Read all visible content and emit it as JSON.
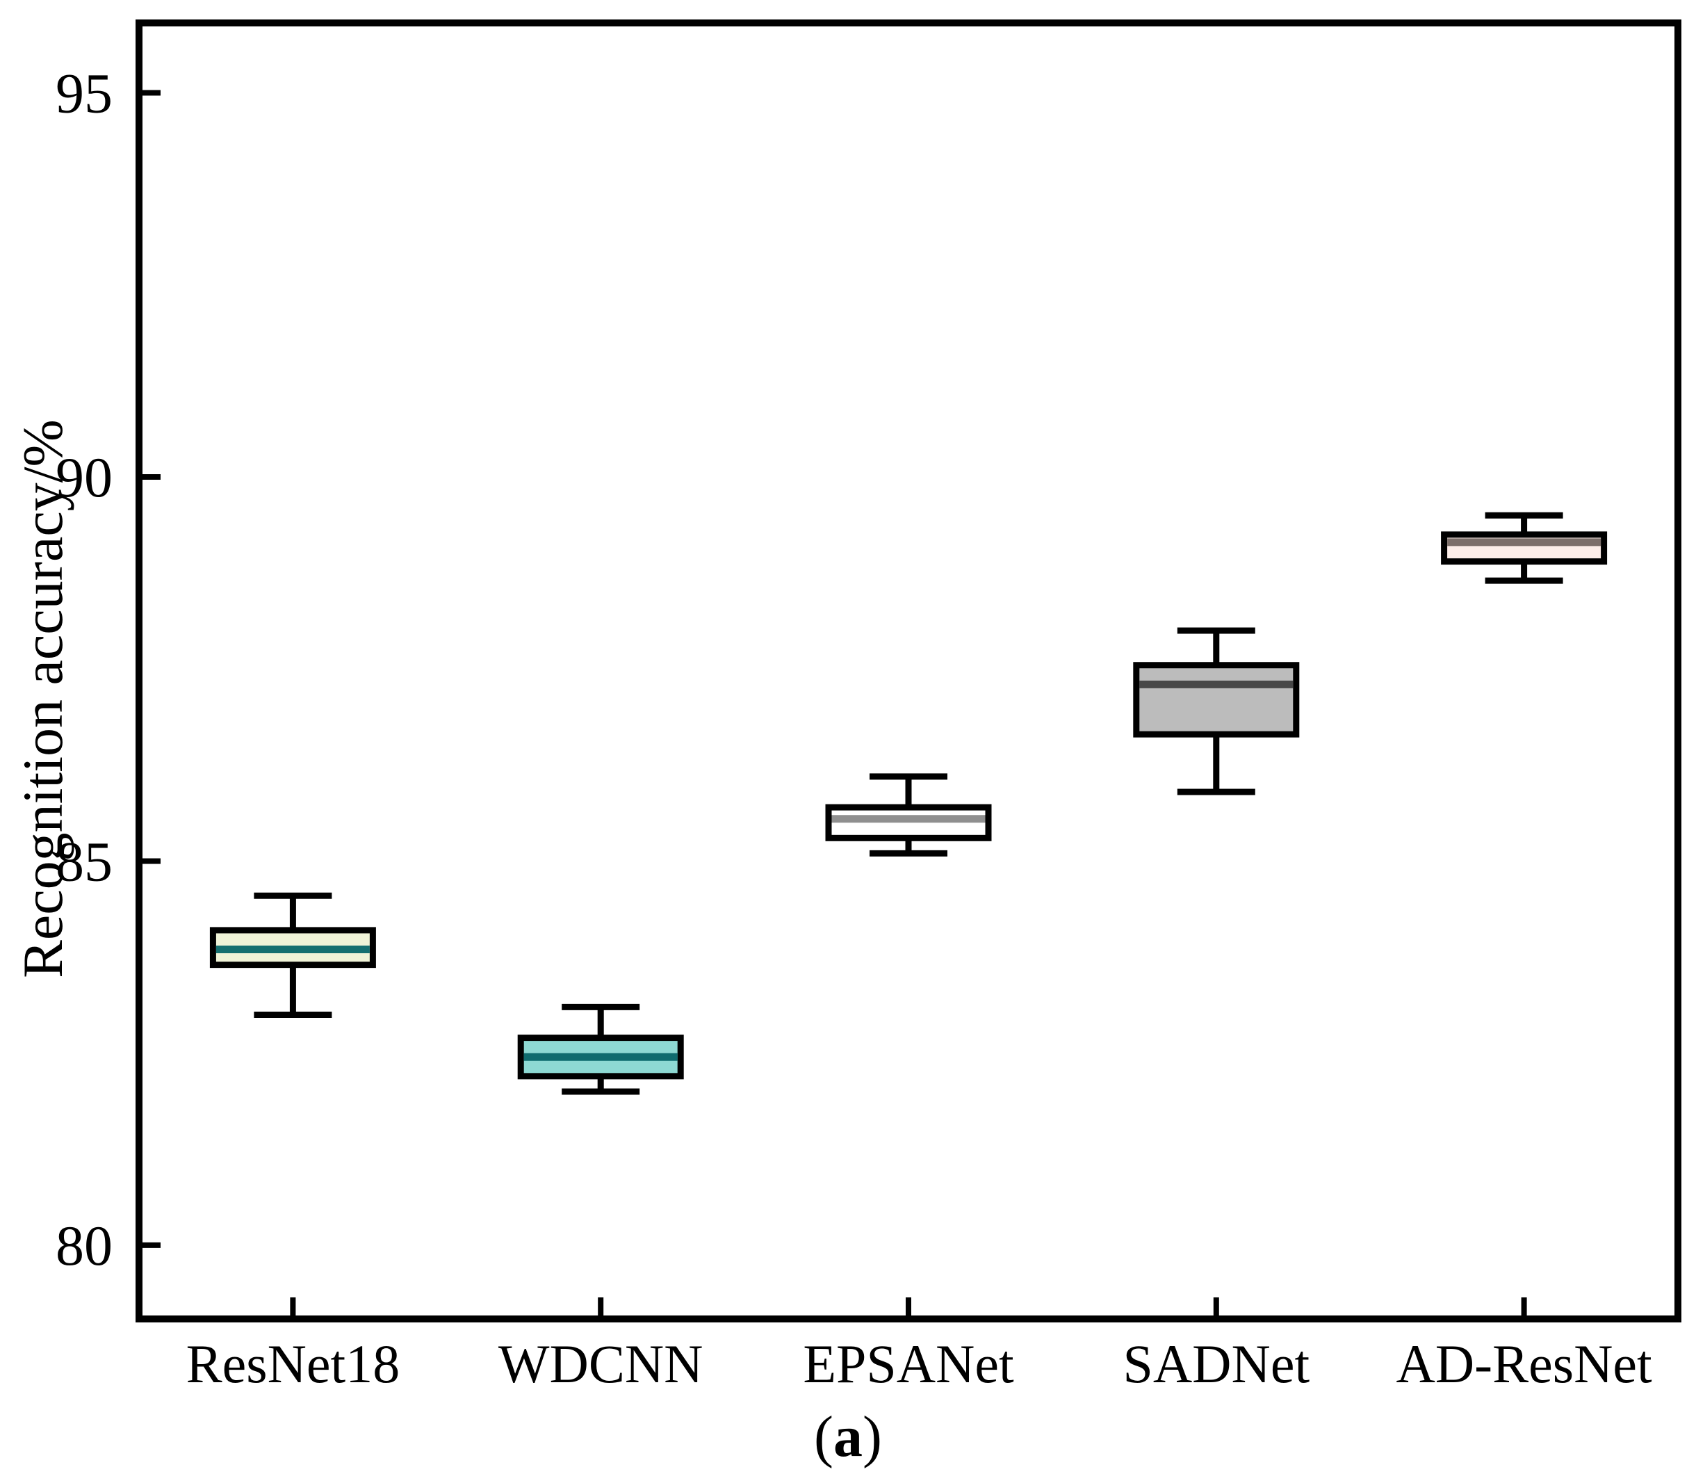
{
  "chart": {
    "ylabel": "Recognition accuracy/%",
    "caption": {
      "open": "(",
      "letter": "a",
      "close": ")"
    }
  },
  "chart_data": {
    "type": "box",
    "title": "",
    "xlabel": "",
    "ylabel": "Recognition accuracy/%",
    "categories": [
      "ResNet18",
      "WDCNN",
      "EPSANet",
      "SADNet",
      "AD-ResNet"
    ],
    "yticks": [
      80,
      85,
      90,
      95
    ],
    "ylim": [
      79.04,
      95.91
    ],
    "grid": false,
    "legend": "none",
    "axis_color": "#000000",
    "caption": "(a)",
    "series": [
      {
        "name": "ResNet18",
        "low": 83.0,
        "q1": 83.65,
        "median": 83.85,
        "q3": 84.1,
        "high": 84.55,
        "box_fill": "#f0f4d8",
        "median_color": "#157070"
      },
      {
        "name": "WDCNN",
        "low": 82.0,
        "q1": 82.2,
        "median": 82.45,
        "q3": 82.7,
        "high": 83.1,
        "box_fill": "#8ed9d3",
        "median_color": "#0f6b6e"
      },
      {
        "name": "EPSANet",
        "low": 85.1,
        "q1": 85.3,
        "median": 85.55,
        "q3": 85.7,
        "high": 86.1,
        "box_fill": "#ffffff",
        "median_color": "#8f8f8f"
      },
      {
        "name": "SADNet",
        "low": 85.9,
        "q1": 86.65,
        "median": 87.3,
        "q3": 87.55,
        "high": 88.0,
        "box_fill": "#bcbcbc",
        "median_color": "#474747"
      },
      {
        "name": "AD-ResNet",
        "low": 88.65,
        "q1": 88.9,
        "median": 89.15,
        "q3": 89.25,
        "high": 89.5,
        "box_fill": "#fdeee9",
        "median_color": "#7c6f6a"
      }
    ]
  }
}
